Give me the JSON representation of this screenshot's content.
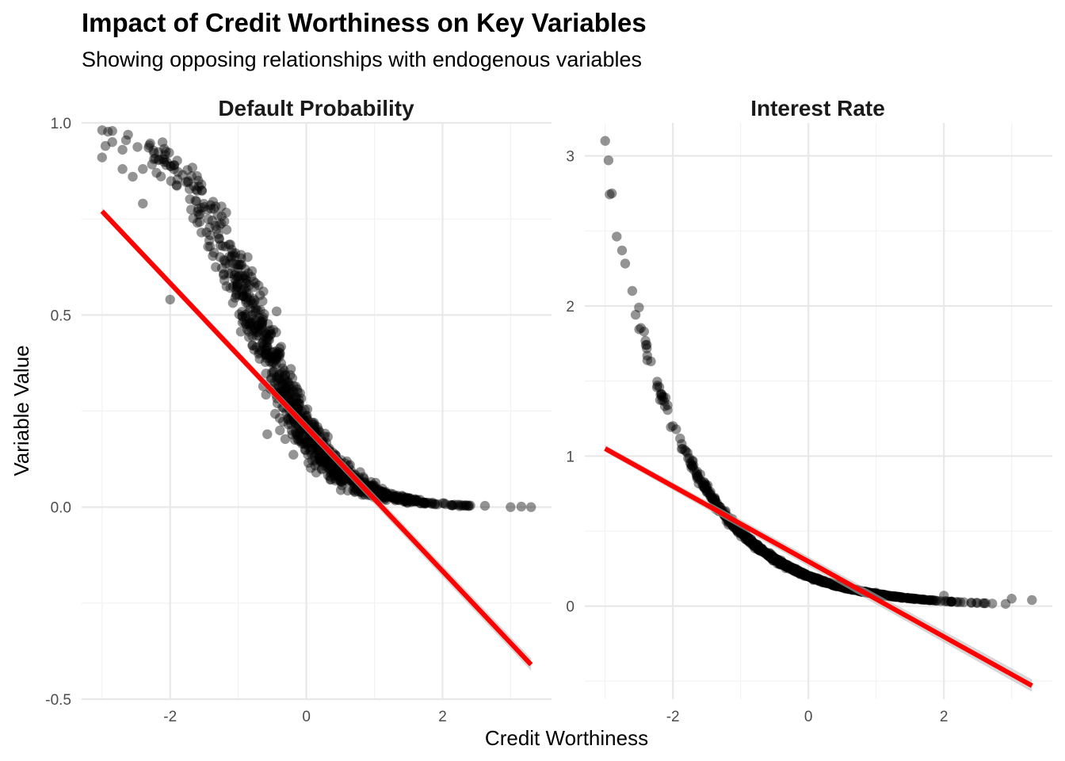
{
  "title": "Impact of Credit Worthiness on Key Variables",
  "subtitle": "Showing opposing relationships with endogenous variables",
  "colors": {
    "points": "#000000",
    "fit_line": "#ff0000",
    "confidence_band": "#bdbdbd"
  },
  "chart_data": [
    {
      "type": "scatter",
      "facet": "Default Probability",
      "xlabel": "Credit Worthiness",
      "ylabel": "Variable Value",
      "xlim": [
        -3.3,
        3.6
      ],
      "ylim": [
        -0.5,
        1.0
      ],
      "x_ticks": [
        -2,
        0,
        2
      ],
      "x_tick_labels": [
        "-2",
        "0",
        "2"
      ],
      "y_ticks": [
        -0.5,
        0.0,
        0.5,
        1.0
      ],
      "y_tick_labels": [
        "-0.5",
        "0.0",
        "0.5",
        "1.0"
      ],
      "grid": true,
      "curve": "logistic",
      "curve_params": {
        "a": -1.75,
        "b": 1.4
      },
      "point_count": 1000,
      "x_range": [
        -3.0,
        3.3
      ],
      "fit_line": {
        "x": [
          -3.0,
          3.3
        ],
        "y": [
          0.77,
          -0.41
        ]
      },
      "sample_points": [
        {
          "x": -3.0,
          "y": 0.91
        },
        {
          "x": -2.95,
          "y": 0.94
        },
        {
          "x": -2.85,
          "y": 0.95
        },
        {
          "x": -2.7,
          "y": 0.93
        },
        {
          "x": -2.7,
          "y": 0.88
        },
        {
          "x": -2.55,
          "y": 0.86
        },
        {
          "x": -2.4,
          "y": 0.88
        },
        {
          "x": -2.4,
          "y": 0.79
        },
        {
          "x": -2.2,
          "y": 0.87
        },
        {
          "x": -2.0,
          "y": 0.54
        },
        {
          "x": -1.6,
          "y": 0.74
        },
        {
          "x": -1.0,
          "y": 0.6
        },
        {
          "x": -0.5,
          "y": 0.39
        },
        {
          "x": 0.0,
          "y": 0.17
        },
        {
          "x": 0.5,
          "y": 0.08
        },
        {
          "x": 1.0,
          "y": 0.03
        },
        {
          "x": 2.0,
          "y": 0.01
        },
        {
          "x": 3.0,
          "y": 0.0
        },
        {
          "x": 3.3,
          "y": 0.0
        }
      ]
    },
    {
      "type": "scatter",
      "facet": "Interest Rate",
      "xlabel": "Credit Worthiness",
      "ylabel": "Variable Value",
      "xlim": [
        -3.3,
        3.6
      ],
      "ylim": [
        -0.62,
        3.22
      ],
      "x_ticks": [
        -2,
        0,
        2
      ],
      "x_tick_labels": [
        "-2",
        "0",
        "2"
      ],
      "y_ticks": [
        0,
        1,
        2,
        3
      ],
      "y_tick_labels": [
        "0",
        "1",
        "2",
        "3"
      ],
      "grid": true,
      "curve": "exponential",
      "curve_params": {
        "a": 0.2,
        "k": 0.9
      },
      "point_count": 1000,
      "x_range": [
        -3.0,
        3.3
      ],
      "fit_line": {
        "x": [
          -3.0,
          3.3
        ],
        "y": [
          1.05,
          -0.53
        ]
      },
      "sample_points": [
        {
          "x": -3.0,
          "y": 3.1
        },
        {
          "x": -2.95,
          "y": 2.97
        },
        {
          "x": -2.9,
          "y": 2.75
        },
        {
          "x": -2.75,
          "y": 2.37
        },
        {
          "x": -2.6,
          "y": 2.1
        },
        {
          "x": -2.5,
          "y": 1.99
        },
        {
          "x": -2.4,
          "y": 1.74
        },
        {
          "x": -2.2,
          "y": 1.46
        },
        {
          "x": -2.0,
          "y": 1.2
        },
        {
          "x": -1.5,
          "y": 0.76
        },
        {
          "x": -1.0,
          "y": 0.49
        },
        {
          "x": 0.0,
          "y": 0.2
        },
        {
          "x": 1.0,
          "y": 0.09
        },
        {
          "x": 2.0,
          "y": 0.07
        },
        {
          "x": 3.0,
          "y": 0.05
        },
        {
          "x": 3.3,
          "y": 0.04
        }
      ]
    }
  ]
}
